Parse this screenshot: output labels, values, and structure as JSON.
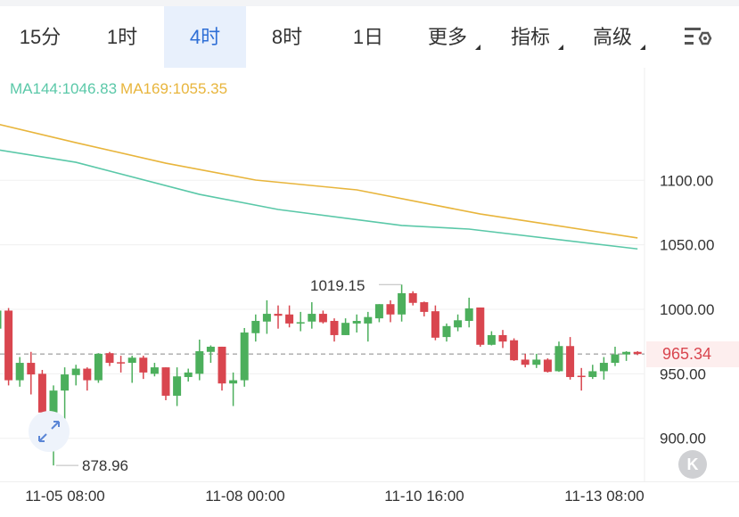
{
  "toolbar": {
    "tabs": [
      {
        "label": "15分"
      },
      {
        "label": "1时"
      },
      {
        "label": "4时",
        "active": true
      },
      {
        "label": "8时"
      },
      {
        "label": "1日"
      },
      {
        "label": "更多",
        "dropdown": true
      },
      {
        "label": "指标",
        "dropdown": true
      },
      {
        "label": "高级",
        "dropdown": true
      }
    ],
    "settings_icon": "chart-settings-icon"
  },
  "legend": {
    "ma144": "MA144:1046.83",
    "ma169": "MA169:1055.35"
  },
  "colors": {
    "up": "#4caf5c",
    "down": "#d9464f",
    "ma144": "#5ac8a8",
    "ma169": "#e8b53c",
    "active_tab": "#2f6fd6"
  },
  "current_price": "965.34",
  "annotations": {
    "high": "1019.15",
    "low": "878.96"
  },
  "buttons": {
    "jump_latest": "K"
  },
  "chart_data": {
    "type": "candlestick",
    "ylim": [
      860,
      1165
    ],
    "yticks": [
      "1100.00",
      "1050.00",
      "1000.00",
      "950.00",
      "900.00"
    ],
    "xticks": [
      "11-05 08:00",
      "11-08 00:00",
      "11-10 16:00",
      "11-13 08:00"
    ],
    "grid": true,
    "candles": [
      [
        985,
        999,
        1001,
        980
      ],
      [
        999,
        945,
        1001,
        941
      ],
      [
        945,
        958.5,
        963,
        940
      ],
      [
        958.5,
        949.5,
        967,
        934
      ],
      [
        950,
        920,
        953,
        908
      ],
      [
        920,
        937,
        941,
        878.96
      ],
      [
        937,
        949.5,
        955,
        900
      ],
      [
        949,
        954,
        957,
        941
      ],
      [
        954,
        945,
        955,
        937
      ],
      [
        945,
        965.5,
        966,
        943
      ],
      [
        966,
        958.5,
        967,
        956
      ],
      [
        959,
        958,
        964,
        951
      ],
      [
        958.5,
        962.5,
        964,
        943
      ],
      [
        962.5,
        951,
        964,
        946
      ],
      [
        950,
        955,
        958.5,
        948
      ],
      [
        955,
        933,
        955,
        929.5
      ],
      [
        933,
        948,
        955,
        925
      ],
      [
        947.5,
        951,
        954,
        944
      ],
      [
        950,
        967.5,
        976.5,
        945
      ],
      [
        967,
        971,
        972,
        958.5
      ],
      [
        971,
        942.5,
        971,
        937
      ],
      [
        942.5,
        945,
        951,
        925
      ],
      [
        945,
        982,
        985.5,
        940
      ],
      [
        981.5,
        991,
        996,
        975
      ],
      [
        990.5,
        996.5,
        1007,
        981
      ],
      [
        996.5,
        995,
        1003,
        985
      ],
      [
        996,
        989,
        1003,
        986
      ],
      [
        989,
        990,
        998,
        983
      ],
      [
        990.5,
        996.5,
        1005.5,
        985
      ],
      [
        996.5,
        990,
        999,
        989
      ],
      [
        991,
        980,
        993,
        975
      ],
      [
        980,
        989.5,
        993,
        980
      ],
      [
        989,
        991,
        996,
        982
      ],
      [
        989,
        994,
        998,
        975
      ],
      [
        993,
        1004,
        1004,
        990
      ],
      [
        1004,
        996,
        1007,
        990
      ],
      [
        996,
        1012.5,
        1019.15,
        990.5
      ],
      [
        1012.5,
        1005,
        1014,
        1003
      ],
      [
        1005.5,
        998,
        1006,
        994.5
      ],
      [
        998.5,
        978,
        1003,
        976
      ],
      [
        978.5,
        987,
        989,
        975
      ],
      [
        986,
        991.5,
        996,
        983
      ],
      [
        991,
        1000.7,
        1009,
        986
      ],
      [
        1001.4,
        972.5,
        1001.4,
        971
      ],
      [
        972.5,
        980,
        983,
        972
      ],
      [
        980,
        975,
        984,
        970
      ],
      [
        976,
        960.5,
        977.5,
        960
      ],
      [
        961,
        957,
        965.5,
        955
      ],
      [
        957,
        961,
        965.5,
        954.5
      ],
      [
        961,
        951.5,
        962,
        951
      ],
      [
        952,
        971.5,
        975,
        951.5
      ],
      [
        971.5,
        947.5,
        978.5,
        945.5
      ],
      [
        948.5,
        948,
        954.5,
        937
      ],
      [
        947.5,
        952,
        957,
        946
      ],
      [
        952,
        958.5,
        963,
        945.5
      ],
      [
        958.5,
        965,
        971,
        956
      ],
      [
        965,
        967,
        967.5,
        960
      ],
      [
        967,
        965.34,
        967.5,
        964.5
      ]
    ],
    "ma": [
      {
        "name": "MA144",
        "points": [
          [
            0,
            1123.7
          ],
          [
            7,
            1114
          ],
          [
            18,
            1089.1
          ],
          [
            25,
            1077.4
          ],
          [
            36,
            1065
          ],
          [
            42,
            1062.2
          ],
          [
            57,
            1046.83
          ]
        ]
      },
      {
        "name": "MA169",
        "points": [
          [
            0,
            1143.7
          ],
          [
            7,
            1129.2
          ],
          [
            15,
            1113.3
          ],
          [
            23,
            1100.2
          ],
          [
            32,
            1092.6
          ],
          [
            43,
            1073.9
          ],
          [
            57,
            1055.35
          ]
        ]
      }
    ]
  }
}
